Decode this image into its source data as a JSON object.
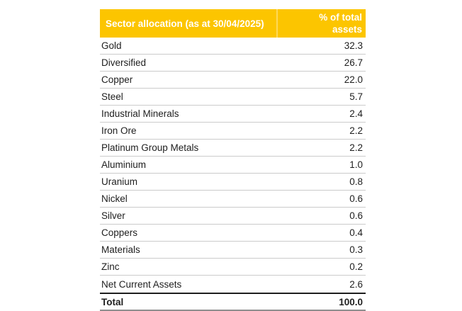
{
  "table": {
    "header": {
      "sector_label": "Sector allocation (as at 30/04/2025)",
      "percent_label": "% of total assets"
    },
    "rows": [
      {
        "label": "Gold",
        "value": "32.3"
      },
      {
        "label": "Diversified",
        "value": "26.7"
      },
      {
        "label": "Copper",
        "value": "22.0"
      },
      {
        "label": "Steel",
        "value": "5.7"
      },
      {
        "label": "Industrial Minerals",
        "value": "2.4"
      },
      {
        "label": "Iron Ore",
        "value": "2.2"
      },
      {
        "label": "Platinum Group Metals",
        "value": "2.2"
      },
      {
        "label": "Aluminium",
        "value": "1.0"
      },
      {
        "label": "Uranium",
        "value": "0.8"
      },
      {
        "label": "Nickel",
        "value": "0.6"
      },
      {
        "label": "Silver",
        "value": "0.6"
      },
      {
        "label": "Coppers",
        "value": "0.4"
      },
      {
        "label": "Materials",
        "value": "0.3"
      },
      {
        "label": "Zinc",
        "value": "0.2"
      },
      {
        "label": "Net Current Assets",
        "value": "2.6"
      }
    ],
    "total": {
      "label": "Total",
      "value": "100.0"
    },
    "colors": {
      "header_bg": "#FCC500",
      "header_text": "#FFFFFF",
      "row_text": "#1E1E1E",
      "divider": "#CBCBCB",
      "total_border_top": "#1E1E1E",
      "total_border_bottom": "#8F8F8F"
    }
  },
  "chart_data": {
    "type": "table",
    "title": "Sector allocation (as at 30/04/2025)",
    "columns": [
      "Sector allocation (as at 30/04/2025)",
      "% of total assets"
    ],
    "categories": [
      "Gold",
      "Diversified",
      "Copper",
      "Steel",
      "Industrial Minerals",
      "Iron Ore",
      "Platinum Group Metals",
      "Aluminium",
      "Uranium",
      "Nickel",
      "Silver",
      "Coppers",
      "Materials",
      "Zinc",
      "Net Current Assets"
    ],
    "values": [
      32.3,
      26.7,
      22.0,
      5.7,
      2.4,
      2.2,
      2.2,
      1.0,
      0.8,
      0.6,
      0.6,
      0.4,
      0.3,
      0.2,
      2.6
    ],
    "total": 100.0,
    "value_unit": "% of total assets"
  }
}
